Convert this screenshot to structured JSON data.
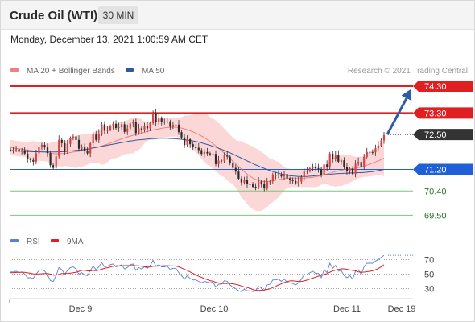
{
  "header": {
    "title": "Crude Oil (WTI)",
    "timeframe": "30 MIN",
    "timestamp": "Monday, December 13, 2021 1:00:59 AM CET"
  },
  "legend": {
    "items": [
      {
        "label": "MA 20 + Bollinger Bands",
        "color": "#f08080"
      },
      {
        "label": "MA 50",
        "color": "#2f5b9e"
      }
    ],
    "credit": "Research © 2021 Trading Central"
  },
  "rsi_legend": {
    "items": [
      {
        "label": "RSI",
        "color": "#5b7fd6"
      },
      {
        "label": "9MA",
        "color": "#e02020"
      }
    ]
  },
  "colors": {
    "resistance": "#e02020",
    "support_blue": "#1f5fd8",
    "support_green": "#7cc47c",
    "current_price": "#333333",
    "bollinger": "#fbd0d0",
    "arrow": "#2a5ea8",
    "candle_up": "#e04040",
    "candle_down": "#2b2b2b"
  },
  "chart_data": [
    {
      "type": "candlestick",
      "x_ticks": [
        "Dec 9",
        "Dec 10",
        "Dec 11",
        "Dec 19"
      ],
      "ylim": [
        69.3,
        74.6
      ],
      "levels": [
        {
          "value": 74.3,
          "label": "74.30",
          "kind": "resistance"
        },
        {
          "value": 73.3,
          "label": "73.30",
          "kind": "resistance"
        },
        {
          "value": 72.5,
          "label": "72.50",
          "kind": "current"
        },
        {
          "value": 71.2,
          "label": "71.20",
          "kind": "pivot"
        },
        {
          "value": 70.4,
          "label": "70.40",
          "kind": "support"
        },
        {
          "value": 69.5,
          "label": "69.50",
          "kind": "support"
        }
      ],
      "close_series": [
        71.92,
        71.93,
        71.95,
        71.86,
        71.92,
        71.79,
        71.58,
        71.55,
        71.49,
        71.8,
        72.05,
        72.11,
        72.02,
        71.81,
        71.36,
        71.26,
        71.69,
        72.3,
        72.18,
        71.84,
        72.15,
        72.37,
        72.43,
        72.3,
        71.97,
        72.05,
        71.89,
        71.8,
        72.17,
        72.5,
        72.3,
        72.53,
        72.88,
        72.64,
        72.68,
        72.81,
        72.9,
        72.74,
        72.77,
        72.88,
        72.6,
        72.72,
        72.91,
        72.96,
        72.55,
        72.73,
        72.67,
        72.82,
        72.73,
        72.93,
        73.3,
        72.95,
        73.1,
        72.98,
        72.97,
        72.99,
        72.79,
        72.86,
        72.87,
        72.59,
        72.39,
        72.11,
        72.32,
        72.14,
        72.03,
        72.01,
        71.92,
        71.78,
        71.85,
        71.8,
        71.76,
        71.78,
        71.4,
        71.53,
        71.51,
        71.72,
        71.68,
        71.44,
        71.26,
        71.12,
        70.86,
        70.72,
        70.81,
        70.66,
        70.64,
        70.56,
        70.55,
        70.75,
        70.68,
        70.49,
        70.74,
        70.76,
        70.98,
        70.98,
        71.01,
        70.94,
        71.03,
        70.87,
        70.81,
        70.77,
        70.69,
        70.75,
        70.92,
        71.13,
        71.15,
        71.25,
        71.31,
        71.24,
        71.22,
        71.01,
        71.39,
        71.28,
        71.79,
        71.6,
        71.75,
        71.49,
        71.54,
        71.29,
        71.13,
        71.23,
        71.03,
        71.41,
        71.48,
        71.29,
        71.67,
        71.85,
        71.85,
        71.84,
        71.99,
        72.09,
        72.28,
        72.48
      ],
      "ma20": [
        72.02,
        72.0,
        71.98,
        71.97,
        71.96,
        71.94,
        71.92,
        71.91,
        71.89,
        71.88,
        71.87,
        71.86,
        71.85,
        71.83,
        71.81,
        71.79,
        71.78,
        71.79,
        71.79,
        71.8,
        71.81,
        71.83,
        71.85,
        71.86,
        71.88,
        71.9,
        71.92,
        71.94,
        71.97,
        72.0,
        72.02,
        72.04,
        72.07,
        72.11,
        72.14,
        72.18,
        72.22,
        72.26,
        72.3,
        72.34,
        72.38,
        72.41,
        72.44,
        72.47,
        72.5,
        72.52,
        72.55,
        72.58,
        72.61,
        72.64,
        72.67,
        72.69,
        72.71,
        72.73,
        72.75,
        72.76,
        72.77,
        72.77,
        72.77,
        72.76,
        72.74,
        72.71,
        72.68,
        72.64,
        72.6,
        72.55,
        72.5,
        72.44,
        72.38,
        72.31,
        72.24,
        72.16,
        72.08,
        71.99,
        71.9,
        71.81,
        71.71,
        71.61,
        71.51,
        71.41,
        71.31,
        71.21,
        71.12,
        71.03,
        70.95,
        70.88,
        70.83,
        70.79,
        70.76,
        70.75,
        70.75,
        70.76,
        70.78,
        70.8,
        70.82,
        70.84,
        70.86,
        70.87,
        70.88,
        70.88,
        70.88,
        70.88,
        70.88,
        70.88,
        70.89,
        70.9,
        70.91,
        70.93,
        70.95,
        70.97,
        71.0,
        71.03,
        71.06,
        71.09,
        71.12,
        71.15,
        71.17,
        71.19,
        71.21,
        71.22,
        71.23,
        71.25,
        71.27,
        71.29,
        71.32,
        71.36,
        71.4,
        71.44,
        71.48,
        71.52,
        71.57,
        71.62
      ],
      "ma50": [
        71.9,
        71.9,
        71.89,
        71.89,
        71.88,
        71.88,
        71.87,
        71.87,
        71.86,
        71.86,
        71.86,
        71.85,
        71.85,
        71.85,
        71.85,
        71.85,
        71.85,
        71.86,
        71.86,
        71.87,
        71.88,
        71.89,
        71.9,
        71.91,
        71.92,
        71.93,
        71.95,
        71.96,
        71.98,
        72.0,
        72.02,
        72.04,
        72.06,
        72.08,
        72.1,
        72.12,
        72.14,
        72.16,
        72.18,
        72.2,
        72.22,
        72.24,
        72.26,
        72.27,
        72.29,
        72.3,
        72.31,
        72.32,
        72.33,
        72.34,
        72.35,
        72.35,
        72.36,
        72.36,
        72.36,
        72.36,
        72.35,
        72.35,
        72.34,
        72.33,
        72.32,
        72.31,
        72.29,
        72.28,
        72.26,
        72.24,
        72.22,
        72.19,
        72.16,
        72.13,
        72.1,
        72.06,
        72.03,
        71.99,
        71.95,
        71.91,
        71.86,
        71.82,
        71.77,
        71.72,
        71.67,
        71.62,
        71.57,
        71.52,
        71.47,
        71.42,
        71.37,
        71.33,
        71.28,
        71.24,
        71.2,
        71.16,
        71.12,
        71.09,
        71.06,
        71.03,
        71.01,
        70.99,
        70.97,
        70.96,
        70.95,
        70.94,
        70.94,
        70.94,
        70.94,
        70.95,
        70.96,
        70.97,
        70.98,
        70.99,
        71.0,
        71.01,
        71.02,
        71.03,
        71.04,
        71.05,
        71.05,
        71.06,
        71.06,
        71.07,
        71.07,
        71.07,
        71.08,
        71.08,
        71.09,
        71.1,
        71.11,
        71.12,
        71.14,
        71.16,
        71.18,
        71.2
      ]
    },
    {
      "type": "line",
      "name": "RSI panel",
      "y_ticks": [
        70,
        50,
        30
      ],
      "ylim": [
        20,
        80
      ],
      "series": [
        {
          "name": "RSI",
          "values": [
            53,
            53,
            54,
            52,
            53,
            50,
            45,
            45,
            44,
            50,
            55,
            56,
            54,
            49,
            41,
            40,
            48,
            59,
            56,
            50,
            55,
            59,
            60,
            57,
            50,
            52,
            49,
            48,
            55,
            61,
            56,
            60,
            66,
            60,
            61,
            63,
            64,
            60,
            61,
            63,
            57,
            59,
            63,
            64,
            55,
            59,
            57,
            60,
            58,
            62,
            69,
            61,
            63,
            60,
            60,
            61,
            56,
            58,
            58,
            52,
            48,
            43,
            48,
            44,
            42,
            42,
            40,
            38,
            40,
            39,
            38,
            39,
            32,
            36,
            36,
            41,
            40,
            35,
            32,
            30,
            27,
            26,
            29,
            27,
            27,
            26,
            27,
            33,
            31,
            27,
            35,
            36,
            42,
            42,
            43,
            40,
            43,
            39,
            38,
            37,
            35,
            38,
            43,
            49,
            49,
            52,
            54,
            51,
            51,
            45,
            56,
            52,
            65,
            58,
            62,
            54,
            55,
            48,
            45,
            48,
            43,
            54,
            56,
            50,
            60,
            65,
            65,
            65,
            68,
            70,
            73,
            76
          ]
        },
        {
          "name": "9MA",
          "values": [
            52.0,
            52.1,
            52.3,
            52.4,
            52.5,
            52.4,
            51.8,
            51.2,
            50.4,
            50.2,
            50.3,
            50.6,
            50.9,
            50.9,
            50.0,
            48.7,
            48.4,
            49.7,
            50.9,
            50.9,
            51.1,
            51.4,
            51.9,
            52.5,
            53.8,
            55.2,
            55.3,
            54.4,
            54.4,
            55.1,
            54.7,
            55.4,
            56.8,
            57.9,
            58.8,
            59.7,
            60.8,
            61.4,
            61.4,
            61.6,
            61.7,
            61.7,
            61.8,
            61.8,
            61.6,
            61.3,
            60.8,
            60.5,
            59.8,
            59.8,
            60.8,
            60.8,
            61.0,
            61.3,
            61.6,
            61.6,
            61.3,
            61.2,
            61.1,
            60.0,
            58.4,
            56.6,
            55.1,
            53.0,
            51.0,
            49.1,
            47.0,
            45.6,
            43.9,
            42.5,
            41.0,
            40.3,
            38.8,
            37.8,
            37.1,
            37.0,
            37.2,
            37.1,
            36.5,
            35.9,
            34.9,
            33.6,
            32.5,
            31.4,
            30.3,
            28.8,
            27.8,
            27.5,
            27.8,
            28.0,
            28.9,
            29.7,
            31.4,
            33.0,
            35.0,
            36.6,
            38.3,
            39.8,
            40.7,
            40.8,
            40.3,
            39.9,
            39.9,
            40.7,
            41.8,
            43.2,
            44.6,
            45.8,
            47.2,
            48.2,
            49.6,
            50.7,
            52.7,
            54.2,
            55.6,
            56.3,
            57.3,
            57.2,
            56.6,
            55.9,
            55.1,
            54.5,
            53.1,
            52.7,
            52.8,
            53.3,
            53.9,
            54.6,
            56.0,
            57.6,
            60.1,
            62.9
          ]
        }
      ]
    }
  ]
}
